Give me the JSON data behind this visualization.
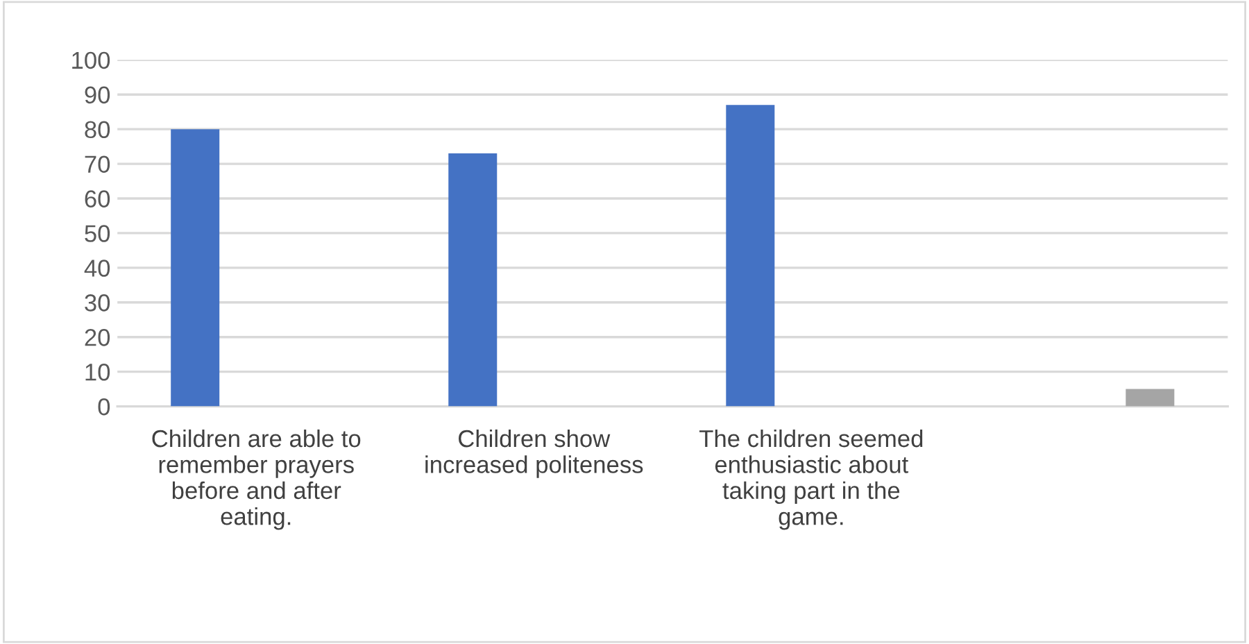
{
  "chart_data": {
    "type": "bar",
    "categories": [
      "Children are able to remember prayers before and after eating.",
      "Children show increased politeness",
      "The children seemed enthusiastic about taking part in the game.",
      null
    ],
    "series": [
      {
        "color": "#4472c4",
        "values": [
          80,
          73,
          87,
          null
        ]
      },
      {
        "color": "#a5a5a5",
        "values": [
          null,
          null,
          null,
          5
        ]
      }
    ],
    "ylim": [
      0,
      100
    ],
    "yticks": [
      0,
      10,
      20,
      30,
      40,
      50,
      60,
      70,
      80,
      90,
      100
    ],
    "grid": "y"
  }
}
